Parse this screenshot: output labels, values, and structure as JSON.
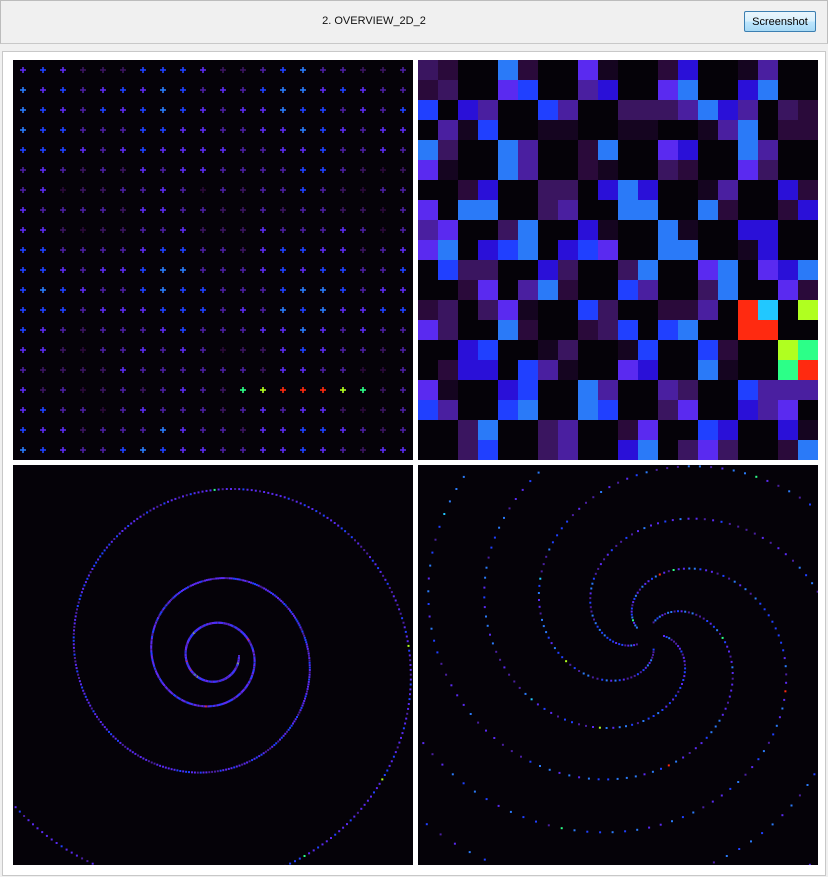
{
  "window": {
    "title": "2. OVERVIEW_2D_2",
    "screenshot_label": "Screenshot"
  },
  "panels": [
    {
      "id": "grid",
      "type": "plus-marker-grid",
      "rows": 20,
      "cols": 20,
      "background": "#050208"
    },
    {
      "id": "checker",
      "type": "color-tile-checker",
      "rows": 20,
      "cols": 20,
      "background": "#050208"
    },
    {
      "id": "spiral",
      "type": "single-arm-spiral",
      "background": "#050208"
    },
    {
      "id": "galaxy",
      "type": "multi-arm-spiral",
      "arms": 5,
      "background": "#050208"
    }
  ],
  "colors": {
    "palette": [
      "#2a0a3a",
      "#3a1560",
      "#4a1fa0",
      "#5a2af0",
      "#2040ff",
      "#2a7af8",
      "#21c8ff",
      "#2cff88",
      "#b0ff20",
      "#ff2a10"
    ]
  },
  "icons": {}
}
